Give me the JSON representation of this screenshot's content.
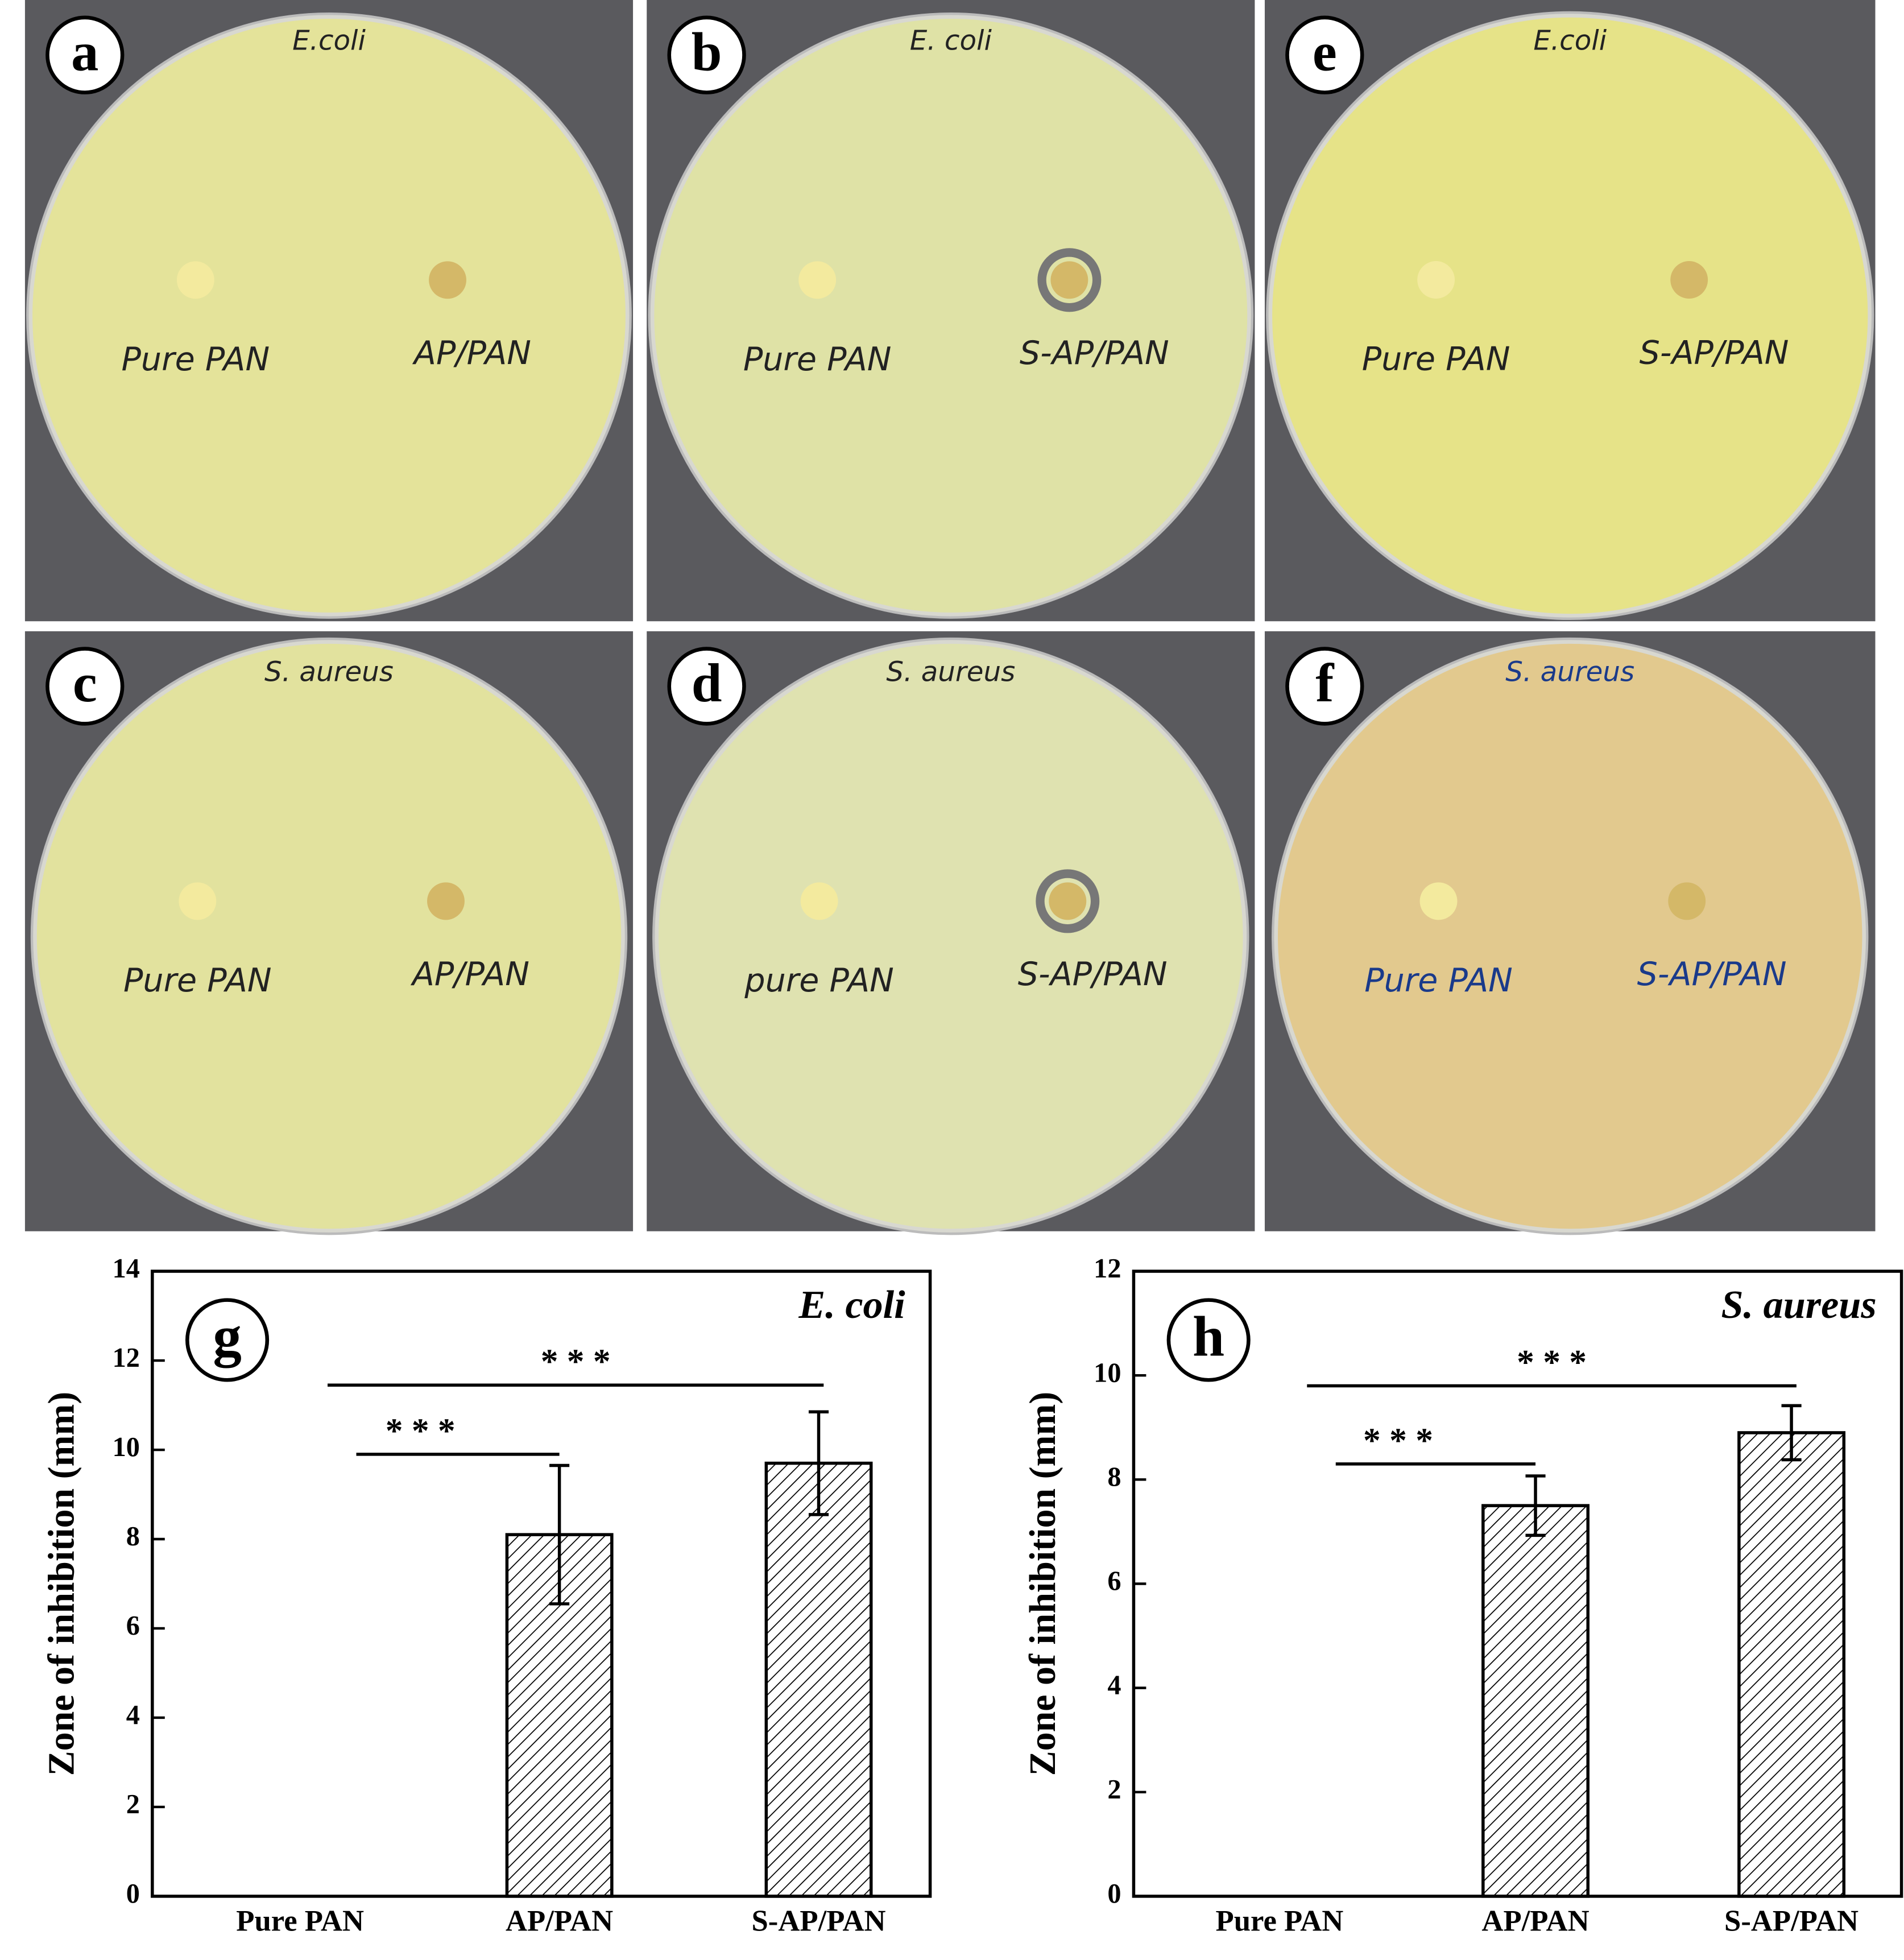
{
  "panels": [
    {
      "letter": "a",
      "label": "E.coli",
      "texts": [
        "Pure PAN",
        "AP/PAN"
      ],
      "color": "#e4e39a",
      "ring": false,
      "ink": "#222"
    },
    {
      "letter": "b",
      "label": "E. coli",
      "texts": [
        "Pure PAN",
        "S-AP/PAN"
      ],
      "color": "#dfe2a6",
      "ring": true,
      "ink": "#222"
    },
    {
      "letter": "e",
      "label": "E.coli",
      "texts": [
        "Pure PAN",
        "S-AP/PAN"
      ],
      "color": "#e6e388",
      "ring": false,
      "ink": "#222"
    },
    {
      "letter": "c",
      "label": "S. aureus",
      "texts": [
        "Pure PAN",
        "AP/PAN"
      ],
      "color": "#e2e29e",
      "ring": false,
      "ink": "#222"
    },
    {
      "letter": "d",
      "label": "S. aureus",
      "texts": [
        "pure PAN",
        "S-AP/PAN"
      ],
      "color": "#dfe2b0",
      "ring": true,
      "ink": "#222"
    },
    {
      "letter": "f",
      "label": "S. aureus",
      "texts": [
        "Pure PAN",
        "S-AP/PAN"
      ],
      "color": "#e2c98e",
      "ring": false,
      "ink": "#1a3a8a"
    }
  ],
  "chart_data": [
    {
      "type": "bar",
      "panel_letter": "g",
      "annotation": "E. coli",
      "ylabel": "Zone of inhibition (mm)",
      "categories": [
        "Pure PAN",
        "AP/PAN",
        "S-AP/PAN"
      ],
      "values": [
        0,
        8.1,
        9.7
      ],
      "errors": [
        null,
        1.55,
        1.15
      ],
      "ylim": [
        0,
        14
      ],
      "yticks": [
        0,
        2,
        4,
        6,
        8,
        10,
        12,
        14
      ],
      "color": "#000000",
      "hatch": true,
      "significance": [
        {
          "label": "* * *",
          "y": 9.9,
          "between": [
            0,
            1
          ]
        },
        {
          "label": "* * *",
          "y": 11.45,
          "between": [
            0,
            2
          ]
        }
      ]
    },
    {
      "type": "bar",
      "panel_letter": "h",
      "annotation": "S. aureus",
      "ylabel": "Zone of inhibition (mm)",
      "categories": [
        "Pure PAN",
        "AP/PAN",
        "S-AP/PAN"
      ],
      "values": [
        0,
        7.5,
        8.9
      ],
      "errors": [
        null,
        0.57,
        0.52
      ],
      "ylim": [
        0,
        12
      ],
      "yticks": [
        0,
        2,
        4,
        6,
        8,
        10,
        12
      ],
      "color": "#000000",
      "hatch": true,
      "significance": [
        {
          "label": "* * *",
          "y": 8.3,
          "between": [
            0,
            1
          ]
        },
        {
          "label": "* * *",
          "y": 9.8,
          "between": [
            0,
            2
          ]
        }
      ]
    }
  ]
}
